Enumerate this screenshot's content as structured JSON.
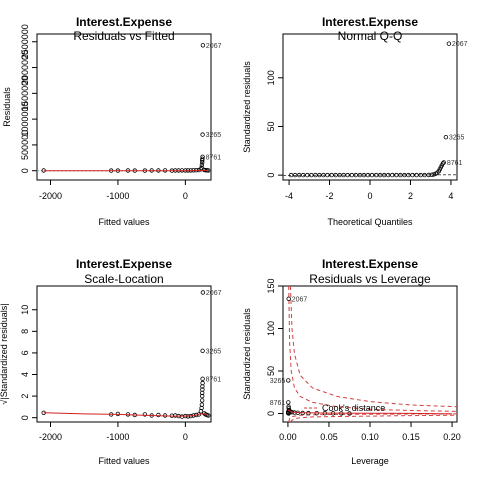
{
  "chart_data": [
    {
      "type": "scatter",
      "title": "Interest.Expense",
      "subtitle": "Residuals vs Fitted",
      "xlabel": "Fitted values",
      "ylabel": "Residuals",
      "xlim": [
        -2200,
        380
      ],
      "ylim": [
        -180000,
        2650000
      ],
      "xticks": [
        -2000,
        -1000,
        0
      ],
      "xtick_labels": [
        "-2000",
        "-1000",
        "0"
      ],
      "yticks": [
        0,
        500000,
        1000000,
        1500000,
        2000000,
        2500000
      ],
      "ytick_labels": [
        "0",
        "500000",
        "1000000",
        "1500000",
        "2000000",
        "2500000"
      ],
      "smoother": [
        [
          -2100,
          0
        ],
        [
          -1000,
          0
        ],
        [
          -500,
          0
        ],
        [
          0,
          0
        ],
        [
          150,
          2000
        ],
        [
          250,
          6000
        ],
        [
          330,
          3000
        ]
      ],
      "annotations": [
        {
          "label": "2067",
          "x": 260,
          "y": 2430000
        },
        {
          "label": "3265",
          "x": 255,
          "y": 700000
        },
        {
          "label": "8761",
          "x": 255,
          "y": 270000
        }
      ],
      "points": [
        [
          -2100,
          5000
        ],
        [
          -1100,
          3000
        ],
        [
          -1000,
          2000
        ],
        [
          -850,
          4000
        ],
        [
          -750,
          3000
        ],
        [
          -600,
          2000
        ],
        [
          -500,
          5000
        ],
        [
          -400,
          4000
        ],
        [
          -300,
          6000
        ],
        [
          -200,
          3000
        ],
        [
          -150,
          5000
        ],
        [
          -100,
          4000
        ],
        [
          -50,
          6000
        ],
        [
          0,
          5000
        ],
        [
          40,
          7000
        ],
        [
          80,
          6000
        ],
        [
          120,
          8000
        ],
        [
          160,
          9000
        ],
        [
          200,
          12000
        ],
        [
          230,
          30000
        ],
        [
          240,
          60000
        ],
        [
          245,
          110000
        ],
        [
          250,
          160000
        ],
        [
          250,
          200000
        ],
        [
          252,
          230000
        ],
        [
          255,
          270000
        ],
        [
          255,
          700000
        ],
        [
          260,
          2430000
        ],
        [
          280,
          15000
        ],
        [
          300,
          10000
        ],
        [
          320,
          8000
        ],
        [
          340,
          6000
        ]
      ]
    },
    {
      "type": "scatter",
      "title": "Interest.Expense",
      "subtitle": "Normal Q-Q",
      "xlabel": "Theoretical Quantiles",
      "ylabel": "Standardized residuals",
      "xlim": [
        -4.3,
        4.3
      ],
      "ylim": [
        -5,
        145
      ],
      "xticks": [
        -4,
        -2,
        0,
        2,
        4
      ],
      "xtick_labels": [
        "-4",
        "-2",
        "0",
        "2",
        "4"
      ],
      "yticks": [
        0,
        50,
        100
      ],
      "ytick_labels": [
        "0",
        "50",
        "100"
      ],
      "reference_line": [
        [
          -4.3,
          -0.4
        ],
        [
          4.3,
          0.4
        ]
      ],
      "annotations": [
        {
          "label": "2067",
          "x": 3.9,
          "y": 135
        },
        {
          "label": "3265",
          "x": 3.75,
          "y": 39
        },
        {
          "label": "8761",
          "x": 3.65,
          "y": 13
        }
      ],
      "points": [
        [
          -3.9,
          0
        ],
        [
          -3.7,
          0
        ],
        [
          -3.5,
          0
        ],
        [
          -3.3,
          0
        ],
        [
          -3.1,
          0
        ],
        [
          -2.9,
          0
        ],
        [
          -2.7,
          0
        ],
        [
          -2.5,
          0
        ],
        [
          -2.3,
          0
        ],
        [
          -2.1,
          0
        ],
        [
          -1.9,
          0
        ],
        [
          -1.7,
          0
        ],
        [
          -1.5,
          0
        ],
        [
          -1.3,
          0
        ],
        [
          -1.1,
          0
        ],
        [
          -0.9,
          0
        ],
        [
          -0.7,
          0
        ],
        [
          -0.5,
          0
        ],
        [
          -0.3,
          0
        ],
        [
          -0.1,
          0
        ],
        [
          0.1,
          0
        ],
        [
          0.3,
          0
        ],
        [
          0.5,
          0
        ],
        [
          0.7,
          0
        ],
        [
          0.9,
          0
        ],
        [
          1.1,
          0
        ],
        [
          1.3,
          0
        ],
        [
          1.5,
          0
        ],
        [
          1.7,
          0
        ],
        [
          1.9,
          0
        ],
        [
          2.1,
          0
        ],
        [
          2.3,
          0
        ],
        [
          2.5,
          0
        ],
        [
          2.7,
          0
        ],
        [
          2.9,
          0.1
        ],
        [
          3.05,
          0.3
        ],
        [
          3.15,
          0.8
        ],
        [
          3.25,
          1.5
        ],
        [
          3.32,
          2.5
        ],
        [
          3.4,
          4
        ],
        [
          3.45,
          6
        ],
        [
          3.5,
          8
        ],
        [
          3.55,
          10
        ],
        [
          3.6,
          12
        ],
        [
          3.65,
          13
        ],
        [
          3.75,
          39
        ],
        [
          3.9,
          135
        ]
      ]
    },
    {
      "type": "scatter",
      "title": "Interest.Expense",
      "subtitle": "Scale-Location",
      "xlabel": "Fitted values",
      "ylabel": "√|Standardized residuals|",
      "xlim": [
        -2200,
        380
      ],
      "ylim": [
        -0.4,
        12.2
      ],
      "xticks": [
        -2000,
        -1000,
        0
      ],
      "xtick_labels": [
        "-2000",
        "-1000",
        "0"
      ],
      "yticks": [
        0,
        2,
        4,
        6,
        8,
        10
      ],
      "ytick_labels": [
        "0",
        "2",
        "4",
        "6",
        "8",
        "10"
      ],
      "smoother": [
        [
          -2100,
          0.45
        ],
        [
          -1500,
          0.35
        ],
        [
          -1000,
          0.3
        ],
        [
          -500,
          0.2
        ],
        [
          -200,
          0.15
        ],
        [
          0,
          0.15
        ],
        [
          150,
          0.2
        ],
        [
          220,
          0.35
        ],
        [
          260,
          0.35
        ],
        [
          330,
          0.3
        ]
      ],
      "annotations": [
        {
          "label": "2067",
          "x": 260,
          "y": 11.6
        },
        {
          "label": "3265",
          "x": 255,
          "y": 6.2
        },
        {
          "label": "8761",
          "x": 255,
          "y": 3.6
        }
      ],
      "points": [
        [
          -2100,
          0.45
        ],
        [
          -1100,
          0.3
        ],
        [
          -1000,
          0.35
        ],
        [
          -850,
          0.3
        ],
        [
          -750,
          0.25
        ],
        [
          -600,
          0.3
        ],
        [
          -500,
          0.2
        ],
        [
          -400,
          0.25
        ],
        [
          -300,
          0.2
        ],
        [
          -200,
          0.18
        ],
        [
          -150,
          0.2
        ],
        [
          -100,
          0.15
        ],
        [
          -50,
          0.1
        ],
        [
          0,
          0.15
        ],
        [
          40,
          0.12
        ],
        [
          80,
          0.15
        ],
        [
          120,
          0.2
        ],
        [
          160,
          0.25
        ],
        [
          200,
          0.3
        ],
        [
          230,
          0.6
        ],
        [
          240,
          0.9
        ],
        [
          245,
          1.2
        ],
        [
          250,
          1.6
        ],
        [
          250,
          2.0
        ],
        [
          250,
          2.3
        ],
        [
          252,
          2.6
        ],
        [
          252,
          2.9
        ],
        [
          255,
          3.2
        ],
        [
          255,
          3.6
        ],
        [
          255,
          6.2
        ],
        [
          260,
          11.6
        ],
        [
          280,
          0.4
        ],
        [
          300,
          0.3
        ],
        [
          320,
          0.25
        ],
        [
          340,
          0.2
        ]
      ]
    },
    {
      "type": "scatter",
      "title": "Interest.Expense",
      "subtitle": "Residuals vs Leverage",
      "xlabel": "Leverage",
      "ylabel": "Standardized residuals",
      "xlim": [
        -0.006,
        0.206
      ],
      "ylim": [
        -10,
        150
      ],
      "xticks": [
        0,
        0.05,
        0.1,
        0.15,
        0.2
      ],
      "xtick_labels": [
        "0.00",
        "0.05",
        "0.10",
        "0.15",
        "0.20"
      ],
      "yticks": [
        0,
        50,
        100,
        150
      ],
      "ytick_labels": [
        "0",
        "50",
        "100",
        "150"
      ],
      "cooks_legend": "Cook's distance",
      "smoother": [
        [
          0,
          4
        ],
        [
          0.005,
          1.5
        ],
        [
          0.02,
          0.8
        ],
        [
          0.05,
          0.5
        ],
        [
          0.1,
          0.3
        ],
        [
          0.15,
          0.1
        ],
        [
          0.2,
          -0.5
        ]
      ],
      "cooks_curves": [
        [
          [
            0.001,
            150
          ],
          [
            0.002,
            85
          ],
          [
            0.004,
            50
          ],
          [
            0.008,
            30
          ],
          [
            0.015,
            20
          ],
          [
            0.03,
            13
          ],
          [
            0.06,
            8
          ],
          [
            0.1,
            5
          ],
          [
            0.15,
            3.5
          ],
          [
            0.206,
            2.5
          ]
        ],
        [
          [
            0.003,
            150
          ],
          [
            0.005,
            100
          ],
          [
            0.008,
            70
          ],
          [
            0.015,
            45
          ],
          [
            0.03,
            30
          ],
          [
            0.06,
            20
          ],
          [
            0.1,
            14
          ],
          [
            0.15,
            10
          ],
          [
            0.206,
            8
          ]
        ],
        [
          [
            0.001,
            -10
          ],
          [
            0.002,
            -6
          ],
          [
            0.004,
            -4
          ],
          [
            0.008,
            -3
          ],
          [
            0.015,
            -2
          ],
          [
            0.03,
            -1.5
          ],
          [
            0.06,
            -1
          ],
          [
            0.1,
            -0.8
          ],
          [
            0.15,
            -0.6
          ],
          [
            0.206,
            -0.5
          ]
        ],
        [
          [
            0.003,
            -10
          ],
          [
            0.005,
            -8
          ],
          [
            0.008,
            -6
          ],
          [
            0.015,
            -5
          ],
          [
            0.03,
            -4
          ],
          [
            0.06,
            -3.5
          ],
          [
            0.1,
            -3
          ],
          [
            0.15,
            -2.5
          ],
          [
            0.206,
            -2
          ]
        ]
      ],
      "annotations": [
        {
          "label": "2067",
          "x": 0.001,
          "y": 135
        },
        {
          "label": "3265",
          "x": 0.0005,
          "y": 39
        },
        {
          "label": "8761",
          "x": 0.0005,
          "y": 13
        }
      ],
      "points": [
        [
          0.001,
          135
        ],
        [
          0.0005,
          39
        ],
        [
          0.0005,
          13
        ],
        [
          0.0008,
          8
        ],
        [
          0.001,
          6
        ],
        [
          0.0015,
          4
        ],
        [
          0.002,
          3
        ],
        [
          0.003,
          2
        ],
        [
          0.005,
          1.5
        ],
        [
          0.008,
          1
        ],
        [
          0.012,
          0.8
        ],
        [
          0.018,
          0.6
        ],
        [
          0.025,
          0.5
        ],
        [
          0.035,
          0.4
        ],
        [
          0.045,
          0.3
        ],
        [
          0.055,
          0.2
        ],
        [
          0.065,
          0.1
        ],
        [
          0.075,
          0
        ],
        [
          0.0003,
          2
        ],
        [
          0.0002,
          1
        ],
        [
          0.0004,
          0.5
        ],
        [
          0.0006,
          0.2
        ],
        [
          0.001,
          0
        ]
      ]
    }
  ]
}
